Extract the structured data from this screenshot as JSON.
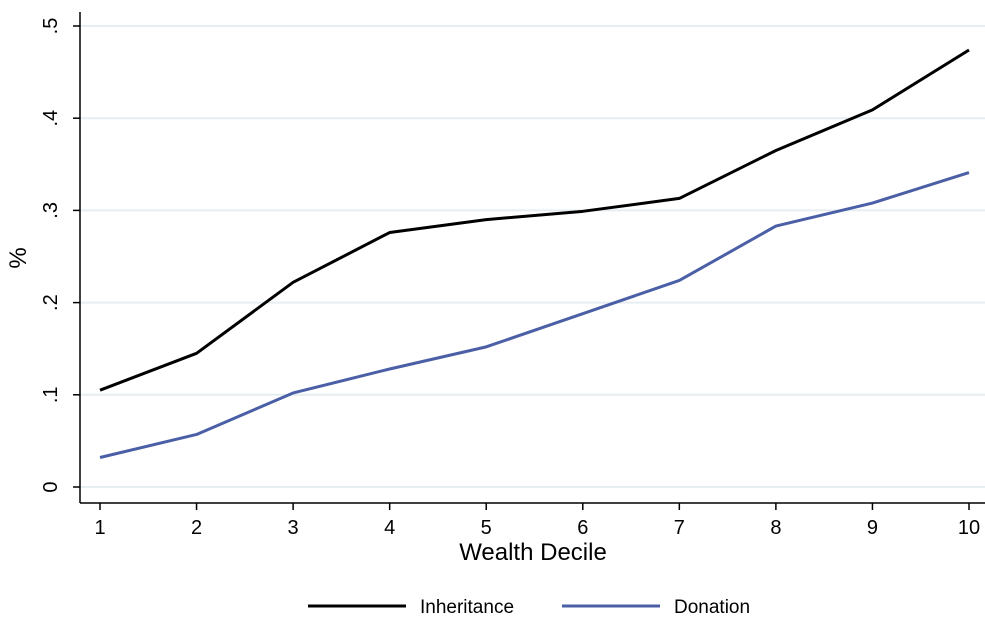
{
  "chart_data": {
    "type": "line",
    "title": "",
    "xlabel": "Wealth Decile",
    "ylabel": "%",
    "x": [
      1,
      2,
      3,
      4,
      5,
      6,
      7,
      8,
      9,
      10
    ],
    "xticks": [
      1,
      2,
      3,
      4,
      5,
      6,
      7,
      8,
      9,
      10
    ],
    "xtick_labels": [
      "1",
      "2",
      "3",
      "4",
      "5",
      "6",
      "7",
      "8",
      "9",
      "10"
    ],
    "yticks": [
      0,
      0.1,
      0.2,
      0.3,
      0.4,
      0.5
    ],
    "ytick_labels": [
      "0",
      ".1",
      ".2",
      ".3",
      ".4",
      ".5"
    ],
    "xlim": [
      1,
      10
    ],
    "ylim": [
      0,
      0.5
    ],
    "grid": "horizontal",
    "legend_position": "bottom",
    "series": [
      {
        "name": "Inheritance",
        "color": "#000000",
        "values": [
          0.105,
          0.145,
          0.222,
          0.276,
          0.29,
          0.299,
          0.313,
          0.365,
          0.409,
          0.474
        ]
      },
      {
        "name": "Donation",
        "color": "#4a5fa6",
        "values": [
          0.032,
          0.057,
          0.102,
          0.128,
          0.152,
          0.188,
          0.224,
          0.283,
          0.308,
          0.341
        ]
      }
    ]
  }
}
